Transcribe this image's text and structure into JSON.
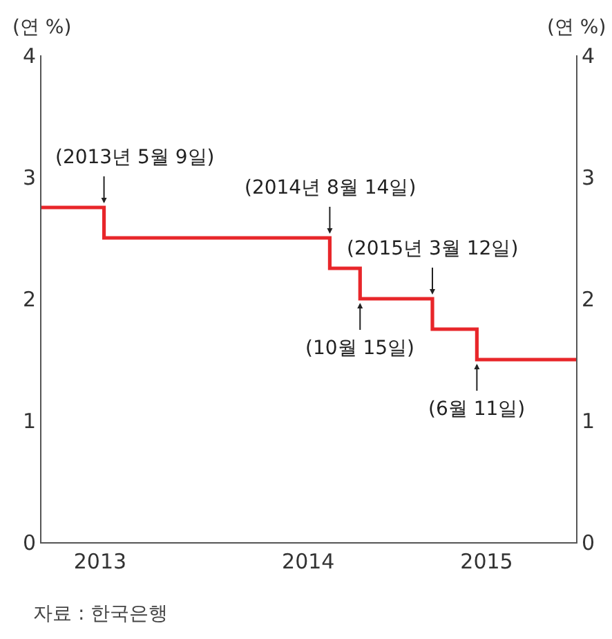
{
  "chart_data": {
    "type": "step",
    "ylabel": "(연 %)",
    "y2label": "(연 %)",
    "x": [
      "2013-01-01",
      "2013-05-09",
      "2014-08-14",
      "2014-10-15",
      "2015-03-12",
      "2015-06-11",
      "2015-12-31"
    ],
    "series": [
      {
        "color": "#e8262a",
        "values": [
          2.75,
          2.5,
          2.25,
          2.0,
          1.75,
          1.5,
          1.5
        ]
      }
    ],
    "xlim": [
      "2013-01-01",
      "2015-12-31"
    ],
    "xticks": [
      {
        "value": "2013-05-01",
        "label": "2013"
      },
      {
        "value": "2014-07-01",
        "label": "2014"
      },
      {
        "value": "2015-07-01",
        "label": "2015"
      }
    ],
    "ylim": [
      0,
      4
    ],
    "yticks": [
      0,
      1,
      2,
      3,
      4
    ],
    "y2lim": [
      0,
      4
    ],
    "y2ticks": [
      0,
      1,
      2,
      3,
      4
    ],
    "annotations": [
      {
        "text": "(2013년 5월 9일)",
        "x": "2013-05-09",
        "y": 2.75
      },
      {
        "text": "(2014년 8월 14일)",
        "x": "2014-08-14",
        "y": 2.5
      },
      {
        "text": "(10월 15일)",
        "x": "2014-10-15",
        "y": 2.0
      },
      {
        "text": "(2015년 3월 12일)",
        "x": "2015-03-12",
        "y": 2.0
      },
      {
        "text": "(6월 11일)",
        "x": "2015-06-11",
        "y": 1.5
      },
      "자료 : 한국은행"
    ]
  }
}
